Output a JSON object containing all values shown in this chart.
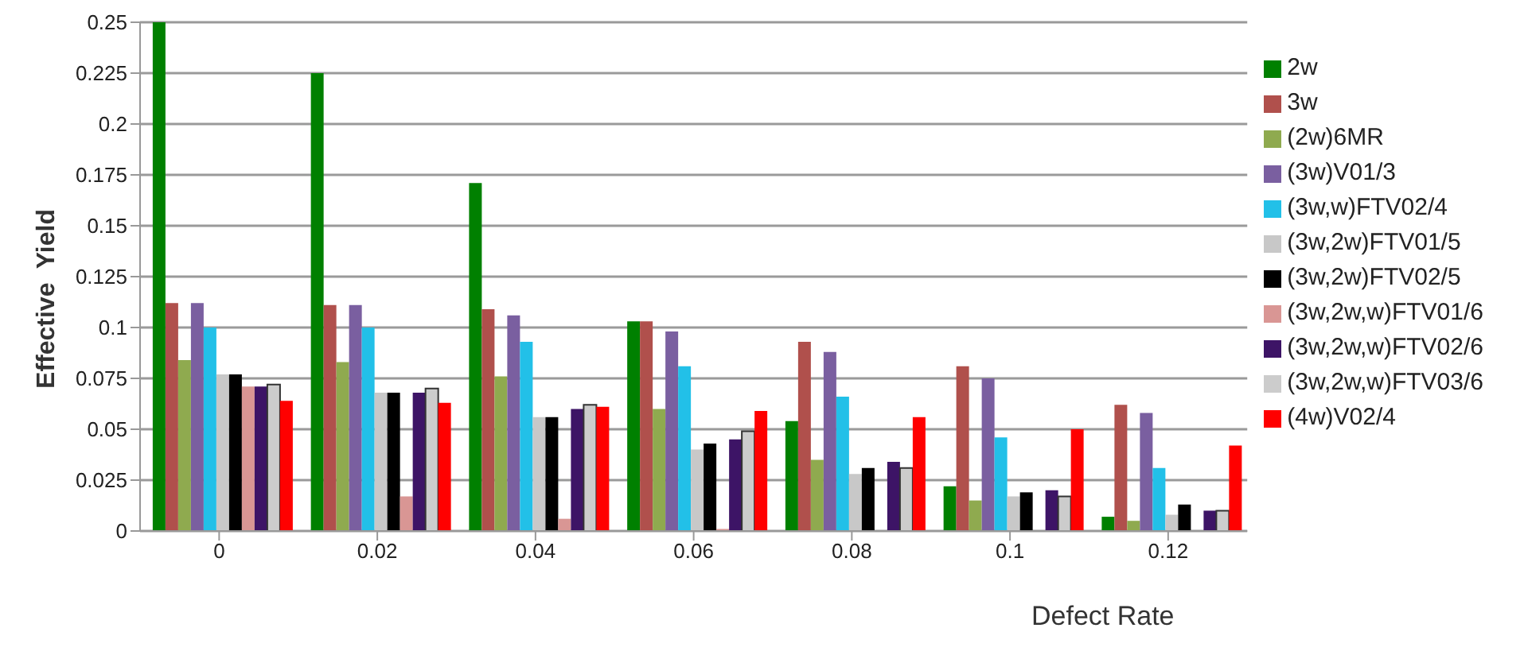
{
  "chart_data": {
    "type": "bar",
    "xlabel": "Defect Rate",
    "ylabel": "Effective  Yield",
    "categories": [
      "0",
      "0.02",
      "0.04",
      "0.06",
      "0.08",
      "0.1",
      "0.12"
    ],
    "series": [
      {
        "name": "2w",
        "color": "#008000",
        "values": [
          0.25,
          0.225,
          0.171,
          0.103,
          0.054,
          0.022,
          0.007
        ]
      },
      {
        "name": "3w",
        "color": "#b0504c",
        "values": [
          0.112,
          0.111,
          0.109,
          0.103,
          0.093,
          0.081,
          0.062
        ]
      },
      {
        "name": "(2w)6MR",
        "color": "#8faa4f",
        "values": [
          0.084,
          0.083,
          0.076,
          0.06,
          0.035,
          0.015,
          0.005
        ]
      },
      {
        "name": "(3w)V01/3",
        "color": "#7a5fa0",
        "values": [
          0.112,
          0.111,
          0.106,
          0.098,
          0.088,
          0.075,
          0.058
        ]
      },
      {
        "name": "(3w,w)FTV02/4",
        "color": "#22c0e8",
        "values": [
          0.1,
          0.1,
          0.093,
          0.081,
          0.066,
          0.046,
          0.031
        ]
      },
      {
        "name": "(3w,2w)FTV01/5",
        "color": "#c8c8c8",
        "values": [
          0.077,
          0.068,
          0.056,
          0.04,
          0.028,
          0.017,
          0.008
        ]
      },
      {
        "name": "(3w,2w)FTV02/5",
        "color": "#000000",
        "values": [
          0.077,
          0.068,
          0.056,
          0.043,
          0.031,
          0.019,
          0.013
        ]
      },
      {
        "name": "(3w,2w,w)FTV01/6",
        "color": "#d99694",
        "values": [
          0.071,
          0.017,
          0.006,
          0.001,
          0,
          0,
          0
        ]
      },
      {
        "name": "(3w,2w,w)FTV02/6",
        "color": "#3d1466",
        "values": [
          0.071,
          0.068,
          0.06,
          0.045,
          0.034,
          0.02,
          0.01
        ]
      },
      {
        "name": "(3w,2w,w)FTV03/6",
        "color": "#cccccc",
        "values": [
          0.072,
          0.07,
          0.062,
          0.049,
          0.031,
          0.017,
          0.01
        ]
      },
      {
        "name": "(4w)V02/4",
        "color": "#ff0000",
        "values": [
          0.064,
          0.063,
          0.061,
          0.059,
          0.056,
          0.05,
          0.042
        ]
      }
    ],
    "ylim": [
      0,
      0.25
    ],
    "yticks": [
      0,
      0.025,
      0.05,
      0.075,
      0.1,
      0.125,
      0.15,
      0.175,
      0.2,
      0.225,
      0.25
    ],
    "grid": "y",
    "legend": "right"
  }
}
